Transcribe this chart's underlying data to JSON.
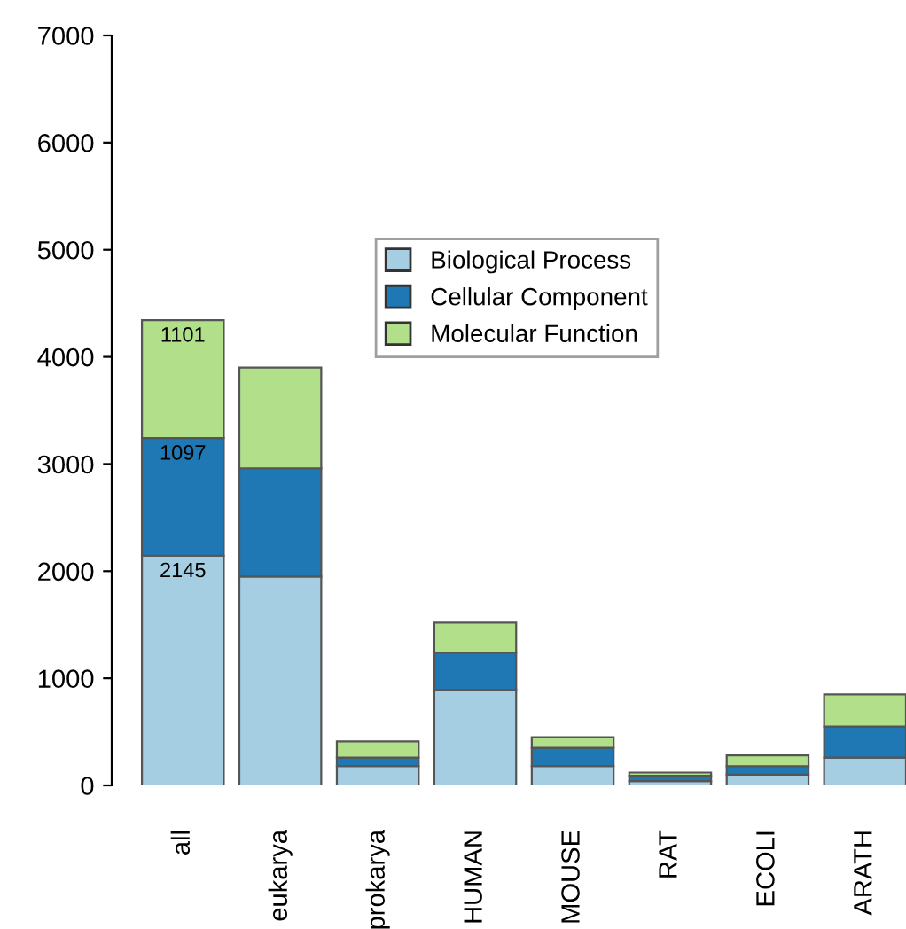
{
  "chart_data": {
    "type": "bar",
    "stacked": true,
    "categories": [
      "all",
      "eukarya",
      "prokarya",
      "HUMAN",
      "MOUSE",
      "RAT",
      "ECOLI",
      "ARATH"
    ],
    "series": [
      {
        "name": "Biological Process",
        "color": "#a6cee3",
        "values": [
          2145,
          1950,
          180,
          890,
          180,
          40,
          100,
          260
        ],
        "value_labels": [
          "2145",
          null,
          null,
          null,
          null,
          null,
          null,
          null
        ]
      },
      {
        "name": "Cellular Component",
        "color": "#1f78b4",
        "values": [
          1097,
          1010,
          80,
          350,
          170,
          50,
          80,
          290
        ],
        "value_labels": [
          "1097",
          null,
          null,
          null,
          null,
          null,
          null,
          null
        ]
      },
      {
        "name": "Molecular Function",
        "color": "#b2df8a",
        "values": [
          1101,
          940,
          150,
          280,
          100,
          30,
          100,
          300
        ],
        "value_labels": [
          "1101",
          null,
          null,
          null,
          null,
          null,
          null,
          null
        ]
      }
    ],
    "ylim": [
      0,
      7000
    ],
    "yticks": [
      0,
      1000,
      2000,
      3000,
      4000,
      5000,
      6000,
      7000
    ],
    "grid": false,
    "legend": "center"
  }
}
